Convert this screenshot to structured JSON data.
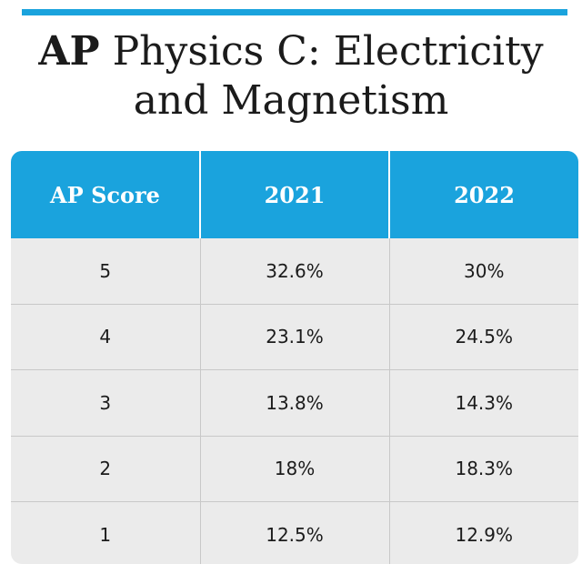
{
  "title": {
    "line1_bold": "AP",
    "line1_rest": "Physics C: Electricity",
    "line2": "and Magnetism"
  },
  "colors": {
    "accent": "#1aa3dd",
    "header_text": "#ffffff",
    "body_bg": "#ebebeb",
    "text": "#1b1b1b"
  },
  "chart_data": {
    "type": "table",
    "title": "AP Physics C: Electricity and Magnetism",
    "columns": [
      "AP Score",
      "2021",
      "2022"
    ],
    "rows": [
      [
        "5",
        "32.6%",
        "30%"
      ],
      [
        "4",
        "23.1%",
        "24.5%"
      ],
      [
        "3",
        "13.8%",
        "14.3%"
      ],
      [
        "2",
        "18%",
        "18.3%"
      ],
      [
        "1",
        "12.5%",
        "12.9%"
      ]
    ]
  }
}
